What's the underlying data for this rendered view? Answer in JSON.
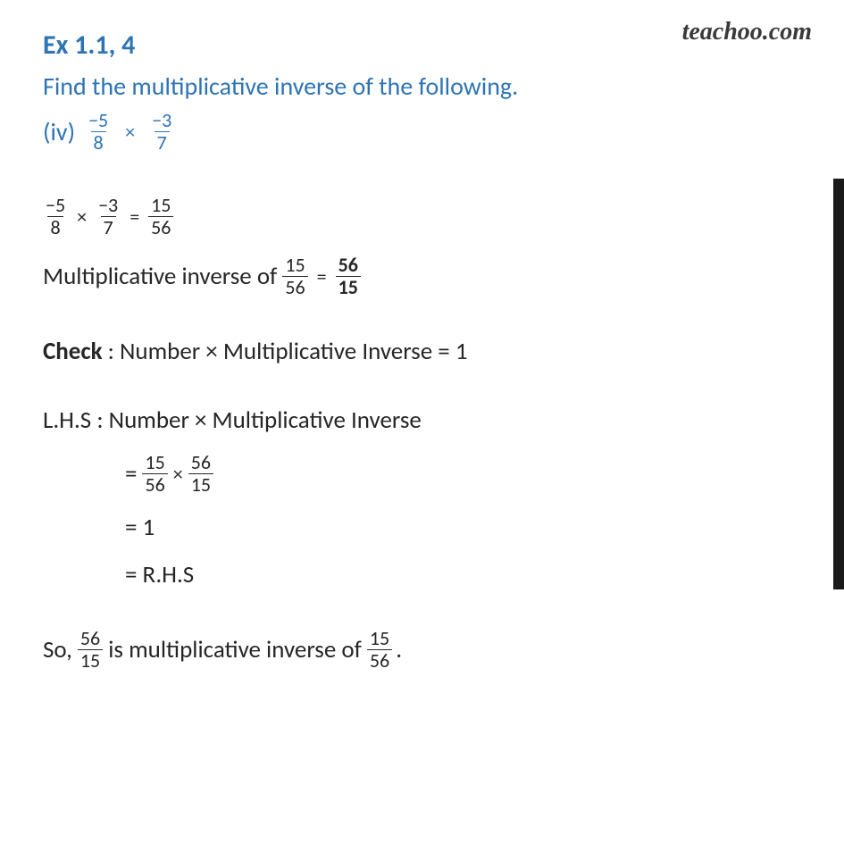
{
  "colors": {
    "heading": "#2E74B5",
    "body": "#262626",
    "background": "#ffffff",
    "watermark": "#3a3a3a",
    "sidebar": "#1a1a1a"
  },
  "typography": {
    "heading_fontsize": 30,
    "body_fontsize": 27,
    "frac_fontsize": 22,
    "font_family": "Calibri"
  },
  "watermark": "teachoo.com",
  "exercise_label": "Ex 1.1, 4",
  "question_text": "Find the multiplicative inverse of the following.",
  "sub_part_label": "(iv)",
  "sub_part_expr": {
    "f1": {
      "num": "−5",
      "den": "8"
    },
    "op": "×",
    "f2": {
      "num": "−3",
      "den": "7"
    }
  },
  "line1": {
    "f1": {
      "num": "−5",
      "den": "8"
    },
    "op1": "×",
    "f2": {
      "num": "−3",
      "den": "7"
    },
    "eq": "=",
    "f3": {
      "num": "15",
      "den": "56"
    }
  },
  "line2": {
    "prefix": "Multiplicative inverse  of",
    "f1": {
      "num": "15",
      "den": "56"
    },
    "eq": "=",
    "f2": {
      "num": "56",
      "den": "15"
    }
  },
  "check": {
    "label": "Check",
    "text": ": Number × Multiplicative Inverse  = 1"
  },
  "lhs_label": "L.H.S : Number × Multiplicative Inverse",
  "step1": {
    "eq": "=",
    "f1": {
      "num": "15",
      "den": "56"
    },
    "op": "×",
    "f2": {
      "num": "56",
      "den": "15"
    }
  },
  "step2": "= 1",
  "step3": "= R.H.S",
  "conclusion": {
    "prefix": "So,",
    "f1": {
      "num": "56",
      "den": "15"
    },
    "mid": " is multiplicative inverse of",
    "f2": {
      "num": "15",
      "den": "56"
    },
    "suffix": "."
  }
}
